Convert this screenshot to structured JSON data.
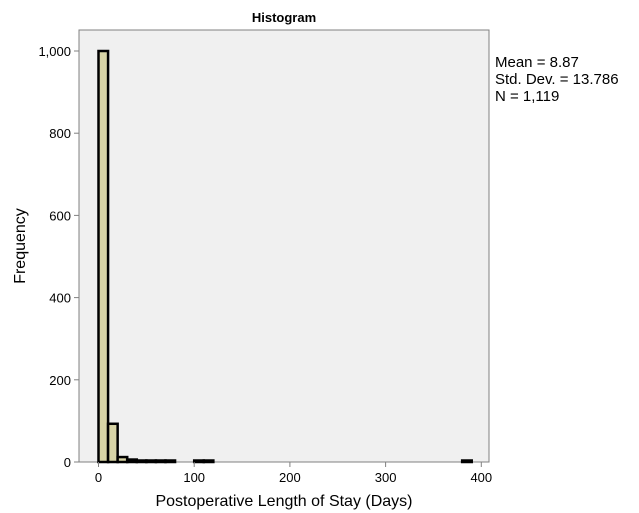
{
  "chart_data": {
    "type": "bar",
    "title": "Histogram",
    "xlabel": "Postoperative Length of Stay (Days)",
    "ylabel": "Frequency",
    "xlim": [
      -15,
      405
    ],
    "ylim": [
      0,
      1000
    ],
    "x_ticks": [
      0,
      100,
      200,
      300,
      400
    ],
    "y_ticks": [
      0,
      200,
      400,
      600,
      800,
      1000
    ],
    "x_tick_labels": [
      "0",
      "100",
      "200",
      "300",
      "400"
    ],
    "y_tick_labels": [
      "0",
      "200",
      "400",
      "600",
      "800",
      "1,000"
    ],
    "grid": false,
    "bin_width": 10,
    "bins": [
      {
        "x0": 0,
        "x1": 10,
        "count": 1000
      },
      {
        "x0": 10,
        "x1": 20,
        "count": 93
      },
      {
        "x0": 20,
        "x1": 30,
        "count": 12
      },
      {
        "x0": 30,
        "x1": 40,
        "count": 6
      },
      {
        "x0": 40,
        "x1": 50,
        "count": 2
      },
      {
        "x0": 50,
        "x1": 60,
        "count": 1
      },
      {
        "x0": 60,
        "x1": 70,
        "count": 1
      },
      {
        "x0": 70,
        "x1": 80,
        "count": 1
      },
      {
        "x0": 100,
        "x1": 110,
        "count": 1
      },
      {
        "x0": 110,
        "x1": 120,
        "count": 1
      },
      {
        "x0": 380,
        "x1": 390,
        "count": 1
      }
    ],
    "colors": {
      "bar_fill": "#d8d4a6",
      "bar_stroke": "#000000",
      "plot_background": "#f0f0f0",
      "axis": "#808080"
    },
    "stats": {
      "mean": "Mean = 8.87",
      "std": "Std. Dev. = 13.786",
      "n": "N = 1,119"
    }
  }
}
